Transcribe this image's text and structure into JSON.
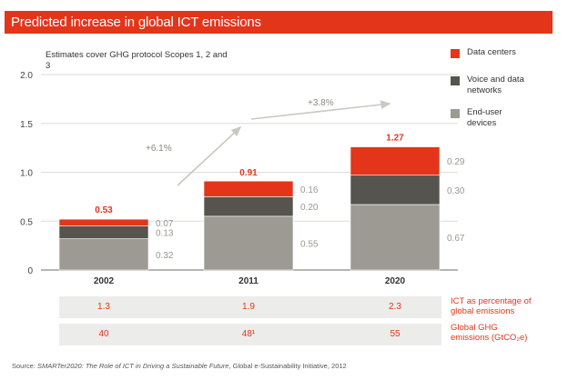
{
  "header": {
    "title": "Predicted increase in global ICT emissions"
  },
  "subtitle": "Estimates cover GHG protocol Scopes 1, 2 and 3",
  "colors": {
    "data_centers": "#e3351a",
    "networks": "#55544e",
    "devices": "#9d9a93",
    "accent": "#e3351a",
    "grid": "#dddcd6",
    "arrow": "#c9c8c2"
  },
  "chart_data": {
    "type": "bar",
    "stacked": true,
    "title": "Predicted increase in global ICT emissions",
    "xlabel": "",
    "ylabel": "",
    "ylim": [
      0,
      2.0
    ],
    "yticks": [
      0,
      0.5,
      1.0,
      1.5,
      2.0
    ],
    "ytick_labels": [
      "0",
      "0.5",
      "1.0",
      "1.5",
      "2.0"
    ],
    "grid": true,
    "legend_position": "right",
    "categories": [
      "2002",
      "2011",
      "2020"
    ],
    "series": [
      {
        "name": "End-user devices",
        "values": [
          0.32,
          0.55,
          0.67
        ]
      },
      {
        "name": "Voice and data networks",
        "values": [
          0.13,
          0.2,
          0.3
        ]
      },
      {
        "name": "Data centers",
        "values": [
          0.07,
          0.16,
          0.29
        ]
      }
    ],
    "totals": [
      "0.53",
      "0.91",
      "1.27"
    ],
    "segment_labels": [
      [
        "0.32",
        "0.13",
        "0.07"
      ],
      [
        "0.55",
        "0.20",
        "0.16"
      ],
      [
        "0.67",
        "0.30",
        "0.29"
      ]
    ],
    "annotations": [
      {
        "text": "+6.1%",
        "from": "2002",
        "to": "2011"
      },
      {
        "text": "+3.8%",
        "from": "2011",
        "to": "2020"
      }
    ]
  },
  "legend": [
    {
      "label": "Data centers",
      "color": "#e3351a"
    },
    {
      "label": "Voice and data networks",
      "color": "#55544e"
    },
    {
      "label": "End-user devices",
      "color": "#9d9a93"
    }
  ],
  "table": {
    "rows": [
      {
        "label": "ICT as percentage of global emissions",
        "values": [
          "1.3",
          "1.9",
          "2.3"
        ]
      },
      {
        "label": "Global GHG emissions (GtCO₂e)",
        "values": [
          "40",
          "48¹",
          "55"
        ]
      }
    ]
  },
  "source": {
    "prefix": "Source: ",
    "title": "SMARTer2020: The Role of ICT in Driving a Sustainable Future",
    "suffix": ", Global e-Sustainability Initiative, 2012"
  }
}
